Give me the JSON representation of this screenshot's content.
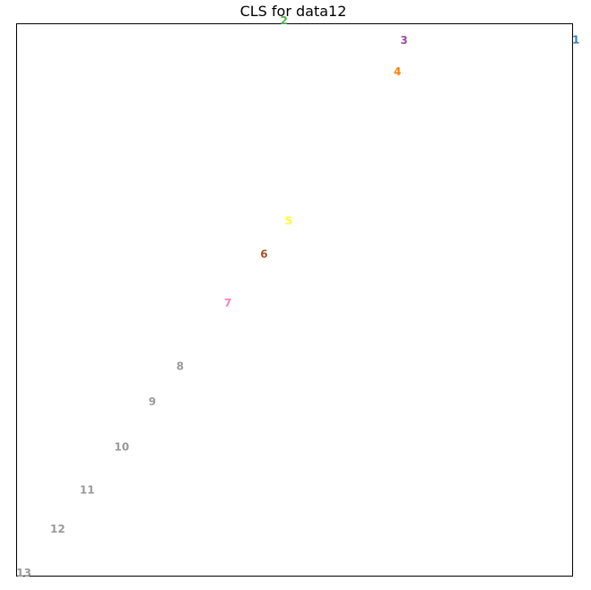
{
  "chart_data": {
    "type": "scatter",
    "title": "CLS for data12",
    "xlabel": "",
    "ylabel": "",
    "xlim": [
      0,
      100
    ],
    "ylim": [
      0,
      100
    ],
    "grid": false,
    "axis_ticks": false,
    "points": [
      {
        "label": "1",
        "x": 100.6,
        "y": 97.1,
        "color": "#377eb8"
      },
      {
        "label": "2",
        "x": 48.1,
        "y": 100.6,
        "color": "#4daf4a"
      },
      {
        "label": "3",
        "x": 69.7,
        "y": 97.0,
        "color": "#984ea3"
      },
      {
        "label": "4",
        "x": 68.5,
        "y": 91.3,
        "color": "#ff7f00"
      },
      {
        "label": "5",
        "x": 48.9,
        "y": 64.3,
        "color": "#ffff33"
      },
      {
        "label": "6",
        "x": 44.5,
        "y": 58.3,
        "color": "#a65628"
      },
      {
        "label": "7",
        "x": 38.0,
        "y": 49.4,
        "color": "#f781bf"
      },
      {
        "label": "8",
        "x": 29.4,
        "y": 38.0,
        "color": "#999999"
      },
      {
        "label": "9",
        "x": 24.4,
        "y": 31.6,
        "color": "#999999"
      },
      {
        "label": "10",
        "x": 18.9,
        "y": 23.4,
        "color": "#999999"
      },
      {
        "label": "11",
        "x": 12.7,
        "y": 15.6,
        "color": "#999999"
      },
      {
        "label": "12",
        "x": 7.4,
        "y": 8.5,
        "color": "#999999"
      },
      {
        "label": "13",
        "x": 1.3,
        "y": 0.6,
        "color": "#999999"
      }
    ]
  }
}
